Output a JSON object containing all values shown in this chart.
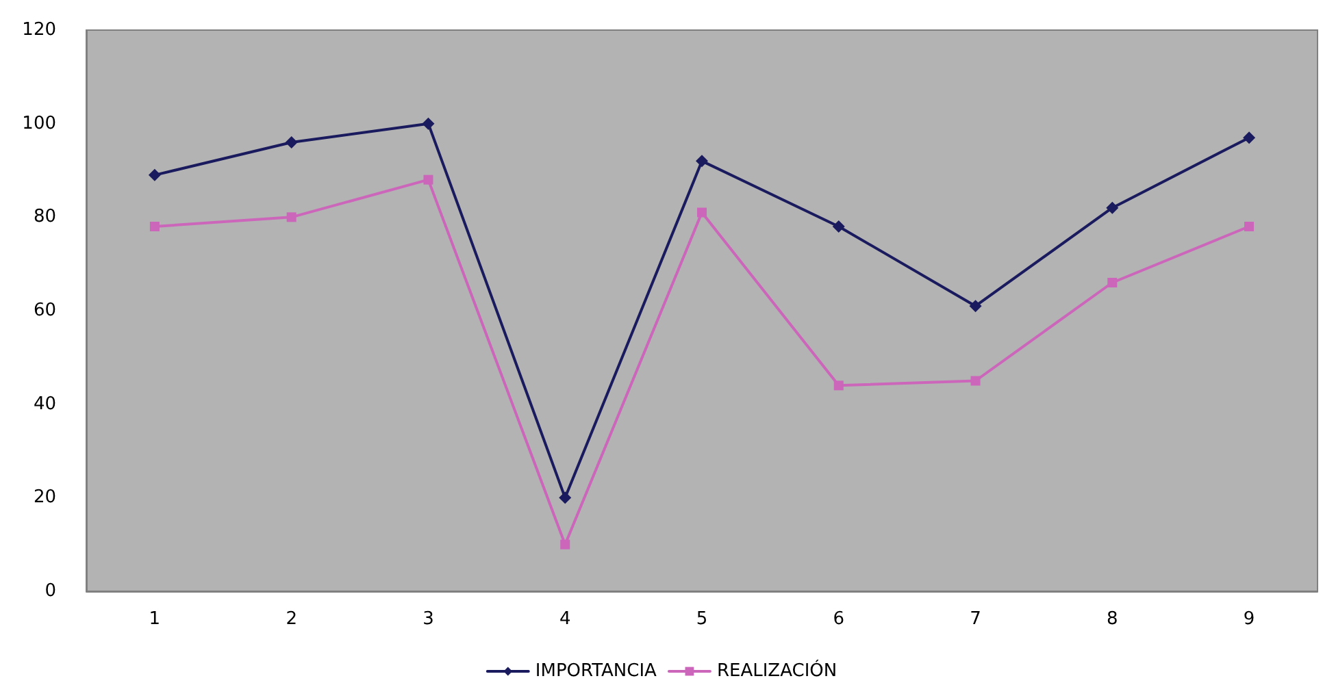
{
  "chart_data": {
    "type": "line",
    "categories": [
      "1",
      "2",
      "3",
      "4",
      "5",
      "6",
      "7",
      "8",
      "9"
    ],
    "series": [
      {
        "name": "IMPORTANCIA",
        "color": "#1a1a5e",
        "marker": "diamond",
        "values": [
          89,
          96,
          100,
          20,
          92,
          78,
          61,
          82,
          97
        ]
      },
      {
        "name": "REALIZACIÓN",
        "color": "#cc66bb",
        "marker": "square",
        "values": [
          78,
          80,
          88,
          10,
          81,
          44,
          45,
          66,
          78
        ]
      }
    ],
    "ylim": [
      0,
      120
    ],
    "yticks": [
      0,
      20,
      40,
      60,
      80,
      100,
      120
    ],
    "grid": false,
    "legend": "bottom",
    "line_style": "solid"
  }
}
